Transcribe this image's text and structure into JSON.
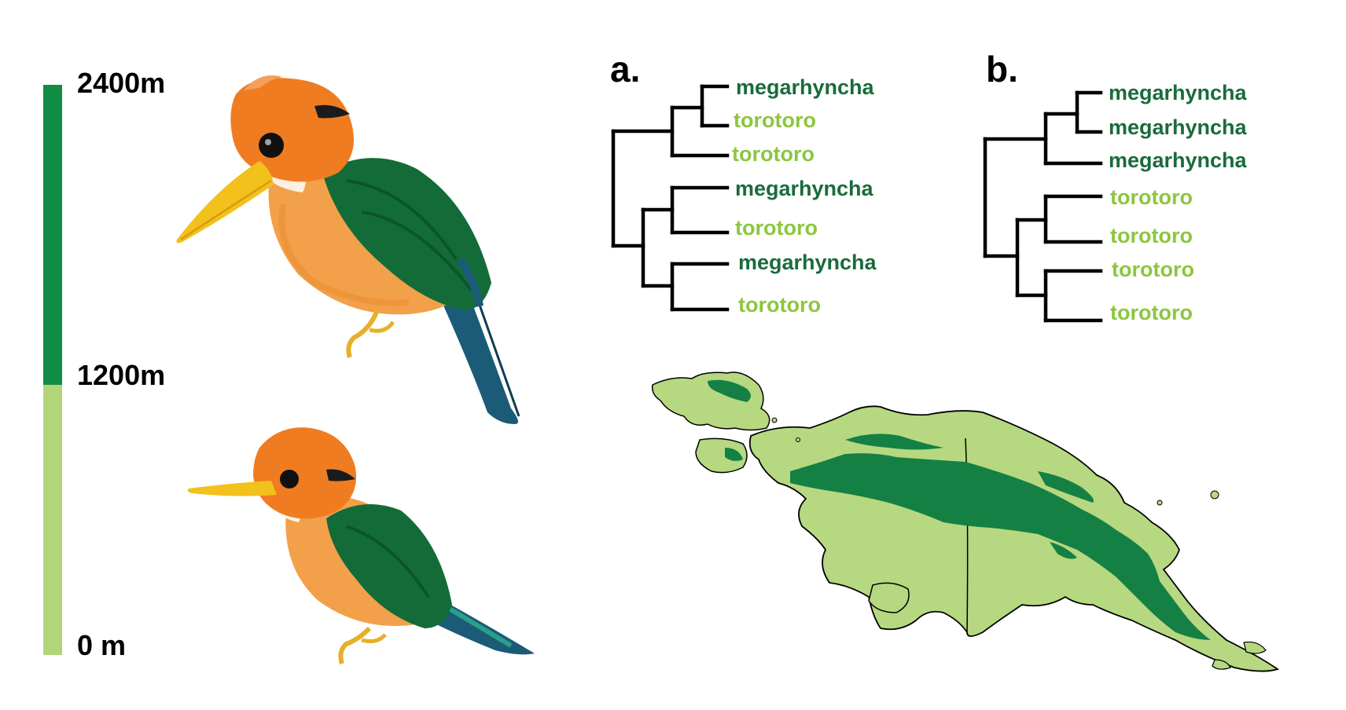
{
  "colors": {
    "highland": "#0f8d45",
    "lowland": "#b2d57a",
    "megarhyncha_text": "#1a6b3c",
    "torotoro_text": "#8cc63f",
    "map_highland": "#158044",
    "map_lowland": "#b6d880",
    "orange": "#f07c22",
    "wing": "#136c38",
    "tail": "#1b5b78",
    "beak": "#f2c11c"
  },
  "elevation": {
    "top_label": "2400m",
    "mid_label": "1200m",
    "bottom_label": "0 m"
  },
  "birds": [
    {
      "icon": "kingfisher-megarhyncha-illustration"
    },
    {
      "icon": "kingfisher-torotoro-illustration"
    }
  ],
  "tree_a": {
    "label": "a.",
    "tips": [
      "megarhyncha",
      "torotoro",
      "torotoro",
      "megarhyncha",
      "torotoro",
      "megarhyncha",
      "torotoro"
    ],
    "tip_kinds": [
      "megarhyncha",
      "torotoro",
      "torotoro",
      "megarhyncha",
      "torotoro",
      "megarhyncha",
      "torotoro"
    ]
  },
  "tree_b": {
    "label": "b.",
    "tips": [
      "megarhyncha",
      "megarhyncha",
      "megarhyncha",
      "torotoro",
      "torotoro",
      "torotoro",
      "torotoro"
    ],
    "tip_kinds": [
      "megarhyncha",
      "megarhyncha",
      "megarhyncha",
      "torotoro",
      "torotoro",
      "torotoro",
      "torotoro"
    ]
  },
  "map": {
    "icon": "new-guinea-map"
  }
}
